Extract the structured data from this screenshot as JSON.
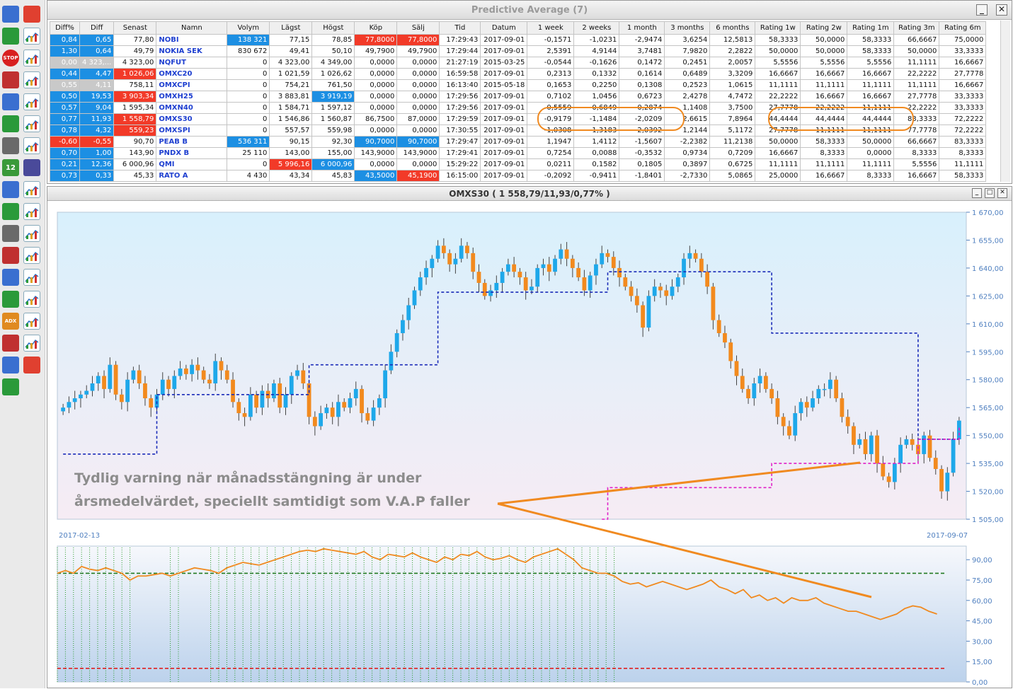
{
  "window_title": "Predictive Average (7)",
  "chart_title": "OMXS30 ( 1 558,79/11,93/0,77% )",
  "columns": [
    "Diff%",
    "Diff",
    "Senast",
    "Namn",
    "Volym",
    "Lägst",
    "Högst",
    "Köp",
    "Sälj",
    "Tid",
    "Datum",
    "1 week",
    "2 weeks",
    "1 month",
    "3 months",
    "6 months",
    "Rating 1w",
    "Rating 2w",
    "Rating 1m",
    "Rating 3m",
    "Rating 6m"
  ],
  "rows": [
    {
      "cells": [
        "0,84",
        "0,65",
        "77,80",
        "NOBI",
        "138 321",
        "77,15",
        "78,85",
        "77,8000",
        "77,8000",
        "17:29:43",
        "2017-09-01",
        "-0,1571",
        "-1,0231",
        "-2,9474",
        "3,6254",
        "12,5813",
        "58,3333",
        "50,0000",
        "58,3333",
        "66,6667",
        "75,0000"
      ],
      "style": {
        "0": "pos",
        "1": "pos",
        "4": "pos",
        "7": "neg",
        "8": "neg"
      }
    },
    {
      "cells": [
        "1,30",
        "0,64",
        "49,79",
        "NOKIA SEK",
        "830 672",
        "49,41",
        "50,10",
        "49,7900",
        "49,7900",
        "17:29:44",
        "2017-09-01",
        "2,5391",
        "4,9144",
        "3,7481",
        "7,9820",
        "2,2822",
        "50,0000",
        "50,0000",
        "58,3333",
        "50,0000",
        "33,3333"
      ],
      "style": {
        "0": "pos",
        "1": "pos"
      }
    },
    {
      "cells": [
        "0,00",
        "4 323,...",
        "4 323,00",
        "NQFUT",
        "0",
        "4 323,00",
        "4 349,00",
        "0,0000",
        "0,0000",
        "21:27:19",
        "2015-03-25",
        "-0,0544",
        "-0,1626",
        "0,1472",
        "0,2451",
        "2,0057",
        "5,5556",
        "5,5556",
        "5,5556",
        "11,1111",
        "16,6667"
      ],
      "style": {
        "0": "gray",
        "1": "gray"
      },
      "stale": true
    },
    {
      "cells": [
        "0,44",
        "4,47",
        "1 026,06",
        "OMXC20",
        "0",
        "1 021,59",
        "1 026,62",
        "0,0000",
        "0,0000",
        "16:59:58",
        "2017-09-01",
        "0,2313",
        "0,1332",
        "0,1614",
        "0,6489",
        "3,3209",
        "16,6667",
        "16,6667",
        "16,6667",
        "22,2222",
        "27,7778"
      ],
      "style": {
        "0": "pos",
        "1": "pos",
        "2": "neg"
      }
    },
    {
      "cells": [
        "0,55",
        "4,11",
        "758,11",
        "OMXCPI",
        "0",
        "754,21",
        "761,50",
        "0,0000",
        "0,0000",
        "16:13:40",
        "2015-05-18",
        "0,1653",
        "0,2250",
        "0,1308",
        "0,2523",
        "1,0615",
        "11,1111",
        "11,1111",
        "11,1111",
        "11,1111",
        "16,6667"
      ],
      "style": {
        "0": "gray",
        "1": "gray"
      },
      "stale": true
    },
    {
      "cells": [
        "0,50",
        "19,53",
        "3 903,34",
        "OMXH25",
        "0",
        "3 883,81",
        "3 919,19",
        "0,0000",
        "0,0000",
        "17:29:56",
        "2017-09-01",
        "0,7102",
        "1,0456",
        "0,6723",
        "2,4278",
        "4,7472",
        "22,2222",
        "16,6667",
        "16,6667",
        "27,7778",
        "33,3333"
      ],
      "style": {
        "0": "pos",
        "1": "pos",
        "2": "neg",
        "6": "pos"
      }
    },
    {
      "cells": [
        "0,57",
        "9,04",
        "1 595,34",
        "OMXN40",
        "0",
        "1 584,71",
        "1 597,12",
        "0,0000",
        "0,0000",
        "17:29:56",
        "2017-09-01",
        "0,5559",
        "0,6849",
        "0,2874",
        "1,1408",
        "3,7500",
        "27,7778",
        "22,2222",
        "11,1111",
        "22,2222",
        "33,3333"
      ],
      "style": {
        "0": "pos",
        "1": "pos"
      }
    },
    {
      "cells": [
        "0,77",
        "11,93",
        "1 558,79",
        "OMXS30",
        "0",
        "1 546,86",
        "1 560,87",
        "86,7500",
        "87,0000",
        "17:29:59",
        "2017-09-01",
        "-0,9179",
        "-1,1484",
        "-2,0209",
        "2,6615",
        "7,8964",
        "44,4444",
        "44,4444",
        "44,4444",
        "83,3333",
        "72,2222"
      ],
      "style": {
        "0": "pos",
        "1": "pos",
        "2": "neg"
      },
      "selected": true
    },
    {
      "cells": [
        "0,78",
        "4,32",
        "559,23",
        "OMXSPI",
        "0",
        "557,57",
        "559,98",
        "0,0000",
        "0,0000",
        "17:30:55",
        "2017-09-01",
        "-1,0308",
        "-1,3183",
        "-2,0392",
        "1,2144",
        "5,1172",
        "27,7778",
        "11,1111",
        "11,1111",
        "77,7778",
        "72,2222"
      ],
      "style": {
        "0": "pos",
        "1": "pos",
        "2": "neg"
      }
    },
    {
      "cells": [
        "-0,60",
        "-0,55",
        "90,70",
        "PEAB B",
        "536 311",
        "90,15",
        "92,30",
        "90,7000",
        "90,7000",
        "17:29:47",
        "2017-09-01",
        "1,1947",
        "1,4112",
        "-1,5607",
        "-2,2382",
        "11,2138",
        "50,0000",
        "58,3333",
        "50,0000",
        "66,6667",
        "83,3333"
      ],
      "style": {
        "0": "neg",
        "1": "neg",
        "4": "pos",
        "7": "pos",
        "8": "pos"
      }
    },
    {
      "cells": [
        "0,70",
        "1,00",
        "143,90",
        "PNDX B",
        "25 110",
        "143,00",
        "155,00",
        "143,9000",
        "143,9000",
        "17:29:41",
        "2017-09-01",
        "0,7254",
        "0,0088",
        "-0,3532",
        "0,9734",
        "0,7209",
        "16,6667",
        "8,3333",
        "0,0000",
        "8,3333",
        "8,3333"
      ],
      "style": {
        "0": "pos",
        "1": "pos"
      }
    },
    {
      "cells": [
        "0,21",
        "12,36",
        "6 000,96",
        "QMI",
        "0",
        "5 996,16",
        "6 000,96",
        "0,0000",
        "0,0000",
        "15:29:22",
        "2017-09-01",
        "0,0211",
        "0,1582",
        "0,1805",
        "0,3897",
        "0,6725",
        "11,1111",
        "11,1111",
        "11,1111",
        "5,5556",
        "11,1111"
      ],
      "style": {
        "0": "pos",
        "1": "pos",
        "5": "neg",
        "6": "pos"
      }
    },
    {
      "cells": [
        "0,73",
        "0,33",
        "45,33",
        "RATO A",
        "4 430",
        "43,34",
        "45,83",
        "43,5000",
        "45,1900",
        "16:15:00",
        "2017-09-01",
        "-0,2092",
        "-0,9411",
        "-1,8401",
        "-2,7330",
        "5,0865",
        "25,0000",
        "16,6667",
        "8,3333",
        "16,6667",
        "58,3333"
      ],
      "style": {
        "0": "pos",
        "1": "pos",
        "7": "pos",
        "8": "neg"
      }
    }
  ],
  "toolbar_icons": [
    "wrench-icon",
    "document-icon",
    "bar-chart-icon",
    "chart-v-icon",
    "stop-icon",
    "chart-m-icon",
    "yin-yang-icon",
    "chart-1-icon",
    "pin-icon",
    "chart-2-icon",
    "person-icon",
    "chart-b-icon",
    "spiral-icon",
    "chart-f-icon",
    "calendar-icon",
    "scatter-icon",
    "compass-icon",
    "chart-m2-icon",
    "compass-n-icon",
    "chart-r-icon",
    "compass-w-icon",
    "chart-o-icon",
    "compass-no-icon",
    "chart-s-icon",
    "anchor-icon",
    "chart-d-icon",
    "ma-icon",
    "bars-icon",
    "adx-icon",
    "bars2-icon",
    "wave-icon",
    "bars3-icon",
    "alarm-icon",
    "filter-icon",
    "page-icon"
  ],
  "chart_data": [
    {
      "type": "candlestick",
      "title": "OMXS30 ( 1 558,79/11,93/0,77% )",
      "x_start_label": "2017-02-13",
      "x_end_label": "2017-09-07",
      "ylim": [
        1505,
        1670
      ],
      "y_ticks": [
        "1 505,00",
        "1 520,00",
        "1 535,00",
        "1 550,00",
        "1 565,00",
        "1 580,00",
        "1 595,00",
        "1 610,00",
        "1 625,00",
        "1 640,00",
        "1 655,00",
        "1 670,00"
      ],
      "closes": [
        1565,
        1568,
        1570,
        1572,
        1574,
        1578,
        1582,
        1575,
        1588,
        1572,
        1568,
        1580,
        1585,
        1578,
        1570,
        1565,
        1572,
        1580,
        1575,
        1582,
        1586,
        1583,
        1588,
        1585,
        1580,
        1578,
        1590,
        1585,
        1580,
        1568,
        1562,
        1560,
        1572,
        1565,
        1574,
        1570,
        1578,
        1565,
        1572,
        1582,
        1585,
        1578,
        1560,
        1555,
        1562,
        1565,
        1560,
        1568,
        1565,
        1570,
        1575,
        1562,
        1558,
        1565,
        1570,
        1585,
        1595,
        1605,
        1612,
        1620,
        1628,
        1635,
        1640,
        1645,
        1652,
        1648,
        1642,
        1645,
        1652,
        1648,
        1638,
        1632,
        1625,
        1628,
        1632,
        1638,
        1642,
        1638,
        1635,
        1628,
        1630,
        1640,
        1642,
        1638,
        1645,
        1650,
        1645,
        1640,
        1635,
        1628,
        1636,
        1642,
        1648,
        1646,
        1640,
        1635,
        1630,
        1625,
        1620,
        1608,
        1625,
        1630,
        1628,
        1625,
        1630,
        1635,
        1645,
        1648,
        1645,
        1638,
        1630,
        1612,
        1605,
        1600,
        1590,
        1582,
        1575,
        1570,
        1578,
        1582,
        1575,
        1570,
        1560,
        1555,
        1550,
        1562,
        1568,
        1565,
        1570,
        1575,
        1575,
        1580,
        1570,
        1560,
        1555,
        1545,
        1548,
        1540,
        1550,
        1535,
        1528,
        1525,
        1535,
        1545,
        1548,
        1545,
        1540,
        1550,
        1538,
        1532,
        1520,
        1530,
        1548,
        1558
      ],
      "series": [
        {
          "name": "",
          "color": "#1a2bb8",
          "steps": [
            [
              0,
              1540
            ],
            [
              15,
              1540
            ],
            [
              16,
              1572
            ],
            [
              41,
              1572
            ],
            [
              42,
              1588
            ],
            [
              63,
              1588
            ],
            [
              64,
              1627
            ],
            [
              92,
              1627
            ],
            [
              93,
              1638
            ],
            [
              120,
              1638
            ],
            [
              121,
              1605
            ],
            [
              145,
              1605
            ],
            [
              146,
              1548
            ],
            [
              170,
              1548
            ]
          ]
        },
        {
          "name": "",
          "color": "#e020c8",
          "steps": [
            [
              92,
              1505
            ],
            [
              93,
              1522
            ],
            [
              120,
              1522
            ],
            [
              121,
              1535
            ],
            [
              145,
              1535
            ],
            [
              146,
              1548
            ],
            [
              170,
              1548
            ],
            [
              171,
              1555
            ]
          ]
        }
      ]
    },
    {
      "type": "line",
      "ylim": [
        0,
        100
      ],
      "y_ticks": [
        "0,00",
        "15,00",
        "30,00",
        "45,00",
        "60,00",
        "75,00",
        "90,00"
      ],
      "thresholds": [
        {
          "value": 80,
          "color": "#207a20"
        },
        {
          "value": 10,
          "color": "#e02020"
        }
      ],
      "series": [
        {
          "name": "",
          "color": "#f08a20",
          "values": [
            80,
            82,
            80,
            85,
            83,
            82,
            84,
            82,
            80,
            75,
            78,
            78,
            79,
            80,
            78,
            80,
            82,
            84,
            83,
            82,
            80,
            84,
            86,
            88,
            87,
            86,
            88,
            90,
            92,
            94,
            96,
            97,
            96,
            98,
            97,
            96,
            95,
            94,
            96,
            92,
            90,
            94,
            93,
            92,
            95,
            92,
            90,
            88,
            92,
            90,
            94,
            93,
            96,
            92,
            90,
            91,
            93,
            90,
            88,
            92,
            94,
            96,
            98,
            94,
            90,
            84,
            82,
            80,
            80,
            78,
            74,
            72,
            73,
            70,
            72,
            74,
            72,
            70,
            68,
            70,
            72,
            75,
            70,
            68,
            65,
            68,
            62,
            64,
            60,
            62,
            58,
            62,
            60,
            60,
            62,
            58,
            56,
            54,
            52,
            52,
            50,
            48,
            46,
            48,
            50,
            54,
            56,
            55,
            52,
            50
          ]
        }
      ]
    }
  ],
  "annotation": {
    "line1": "Tydlig varning när månadsstängning är under",
    "line2": "årsmedelvärdet, speciellt samtidigt som V.A.P faller"
  },
  "colors": {
    "up": "#1ea8ea",
    "down": "#f28a1e",
    "pos_cell": "#1c8fe3",
    "neg_cell": "#f23a28",
    "gray_cell": "#c9c9c9"
  }
}
